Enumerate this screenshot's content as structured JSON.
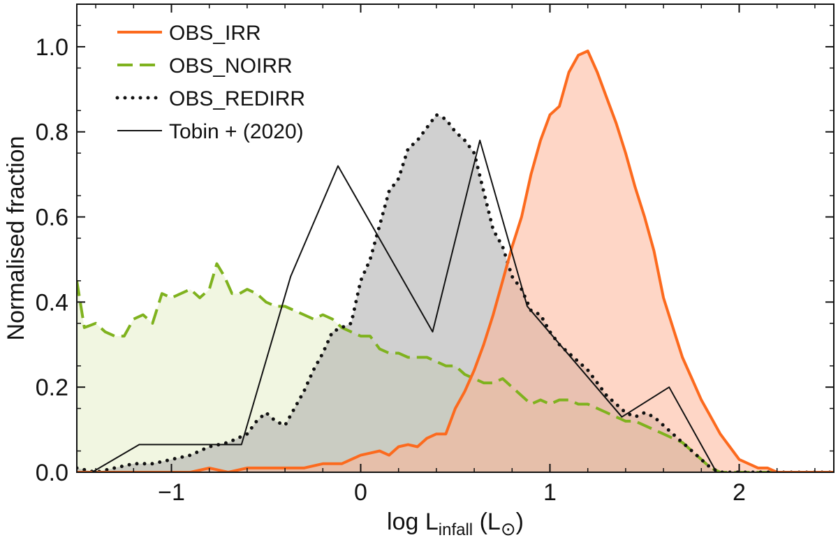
{
  "chart_data": {
    "type": "area",
    "xlabel": {
      "prefix": "log L",
      "subscript": "infall",
      "suffix": " (L",
      "sun": "⊙",
      "close": ")"
    },
    "ylabel": "Normalised fraction",
    "xlim": [
      -1.5,
      2.5
    ],
    "ylim": [
      0.0,
      1.1
    ],
    "xticks": [
      -1,
      0,
      1,
      2
    ],
    "xtick_labels": [
      "−1",
      "0",
      "1",
      "2"
    ],
    "yticks": [
      0.0,
      0.2,
      0.4,
      0.6,
      0.8,
      1.0
    ],
    "ytick_labels": [
      "0.0",
      "0.2",
      "0.4",
      "0.6",
      "0.8",
      "1.0"
    ],
    "legend_position": "top-left",
    "series": [
      {
        "name": "OBS_NOIRR",
        "style": "dashed",
        "color": "#7fb21e",
        "fill": "#e6efc8",
        "x": [
          -1.5,
          -1.46,
          -1.4,
          -1.35,
          -1.3,
          -1.25,
          -1.2,
          -1.15,
          -1.1,
          -1.05,
          -1.0,
          -0.95,
          -0.9,
          -0.85,
          -0.8,
          -0.76,
          -0.72,
          -0.68,
          -0.64,
          -0.6,
          -0.55,
          -0.5,
          -0.45,
          -0.4,
          -0.35,
          -0.3,
          -0.25,
          -0.2,
          -0.15,
          -0.1,
          -0.05,
          0.0,
          0.05,
          0.1,
          0.15,
          0.2,
          0.25,
          0.3,
          0.35,
          0.4,
          0.45,
          0.5,
          0.55,
          0.6,
          0.65,
          0.7,
          0.75,
          0.8,
          0.85,
          0.9,
          0.95,
          1.0,
          1.05,
          1.1,
          1.15,
          1.2,
          1.25,
          1.3,
          1.35,
          1.4,
          1.45,
          1.5,
          1.55,
          1.6,
          1.65,
          1.7,
          1.75,
          1.8,
          1.85,
          1.9,
          2.0,
          2.5
        ],
        "values": [
          0.45,
          0.34,
          0.35,
          0.33,
          0.32,
          0.32,
          0.36,
          0.37,
          0.35,
          0.42,
          0.41,
          0.42,
          0.43,
          0.41,
          0.43,
          0.49,
          0.46,
          0.42,
          0.42,
          0.43,
          0.42,
          0.4,
          0.39,
          0.39,
          0.38,
          0.37,
          0.36,
          0.37,
          0.36,
          0.34,
          0.33,
          0.32,
          0.32,
          0.29,
          0.28,
          0.28,
          0.27,
          0.27,
          0.27,
          0.26,
          0.25,
          0.25,
          0.23,
          0.22,
          0.21,
          0.21,
          0.22,
          0.2,
          0.18,
          0.16,
          0.17,
          0.16,
          0.17,
          0.17,
          0.16,
          0.16,
          0.15,
          0.14,
          0.13,
          0.12,
          0.12,
          0.11,
          0.1,
          0.09,
          0.08,
          0.07,
          0.05,
          0.03,
          0.01,
          0.0,
          0.0,
          0.0
        ]
      },
      {
        "name": "OBS_REDIRR",
        "style": "dotted",
        "color": "#111111",
        "fill": "#aaaaaa",
        "x": [
          -1.5,
          -1.4,
          -1.3,
          -1.2,
          -1.1,
          -1.0,
          -0.9,
          -0.8,
          -0.7,
          -0.6,
          -0.55,
          -0.5,
          -0.45,
          -0.4,
          -0.35,
          -0.3,
          -0.25,
          -0.2,
          -0.15,
          -0.1,
          -0.05,
          0.0,
          0.05,
          0.1,
          0.15,
          0.2,
          0.25,
          0.3,
          0.35,
          0.4,
          0.45,
          0.5,
          0.55,
          0.6,
          0.65,
          0.7,
          0.75,
          0.8,
          0.85,
          0.9,
          0.95,
          1.0,
          1.05,
          1.1,
          1.15,
          1.2,
          1.25,
          1.3,
          1.35,
          1.4,
          1.45,
          1.5,
          1.55,
          1.6,
          1.65,
          1.7,
          1.75,
          1.8,
          1.85,
          1.9,
          2.0,
          2.5
        ],
        "values": [
          0.01,
          0.0,
          0.01,
          0.02,
          0.02,
          0.03,
          0.04,
          0.06,
          0.07,
          0.09,
          0.12,
          0.14,
          0.12,
          0.11,
          0.15,
          0.19,
          0.24,
          0.28,
          0.33,
          0.34,
          0.35,
          0.45,
          0.5,
          0.58,
          0.66,
          0.69,
          0.76,
          0.78,
          0.81,
          0.84,
          0.83,
          0.8,
          0.78,
          0.75,
          0.66,
          0.57,
          0.53,
          0.46,
          0.43,
          0.38,
          0.37,
          0.33,
          0.3,
          0.28,
          0.26,
          0.24,
          0.21,
          0.18,
          0.16,
          0.14,
          0.13,
          0.14,
          0.13,
          0.11,
          0.09,
          0.07,
          0.05,
          0.03,
          0.01,
          0.0,
          0.0,
          0.0
        ]
      },
      {
        "name": "OBS_IRR",
        "style": "solid",
        "color": "#fc6a1e",
        "fill": "#fdb598",
        "x": [
          -1.5,
          -1.3,
          -1.1,
          -0.9,
          -0.8,
          -0.7,
          -0.6,
          -0.5,
          -0.4,
          -0.3,
          -0.2,
          -0.1,
          0.0,
          0.05,
          0.1,
          0.15,
          0.2,
          0.25,
          0.3,
          0.35,
          0.4,
          0.45,
          0.5,
          0.55,
          0.6,
          0.65,
          0.7,
          0.75,
          0.8,
          0.85,
          0.9,
          0.95,
          1.0,
          1.05,
          1.1,
          1.15,
          1.2,
          1.25,
          1.3,
          1.35,
          1.4,
          1.45,
          1.5,
          1.55,
          1.6,
          1.65,
          1.7,
          1.75,
          1.8,
          1.85,
          1.9,
          1.95,
          2.0,
          2.05,
          2.1,
          2.15,
          2.2,
          2.25,
          2.3,
          2.35,
          2.4,
          2.45,
          2.5
        ],
        "values": [
          0.0,
          0.0,
          0.0,
          0.0,
          0.01,
          0.0,
          0.01,
          0.01,
          0.01,
          0.01,
          0.02,
          0.02,
          0.04,
          0.045,
          0.05,
          0.04,
          0.06,
          0.065,
          0.06,
          0.08,
          0.09,
          0.09,
          0.15,
          0.19,
          0.24,
          0.3,
          0.37,
          0.45,
          0.53,
          0.6,
          0.7,
          0.78,
          0.84,
          0.86,
          0.94,
          0.98,
          0.99,
          0.94,
          0.88,
          0.82,
          0.75,
          0.67,
          0.6,
          0.52,
          0.41,
          0.34,
          0.27,
          0.22,
          0.17,
          0.13,
          0.09,
          0.06,
          0.03,
          0.02,
          0.01,
          0.01,
          0.0,
          0.0,
          0.0,
          0.0,
          0.0,
          0.0,
          0.0
        ]
      },
      {
        "name": "Tobin + (2020)",
        "style": "solid-thin",
        "color": "#111111",
        "fill": "none",
        "x": [
          -1.42,
          -1.17,
          -0.63,
          -0.37,
          -0.12,
          0.38,
          0.63,
          0.88,
          1.38,
          1.63,
          1.88
        ],
        "values": [
          0.0,
          0.065,
          0.065,
          0.46,
          0.72,
          0.33,
          0.78,
          0.39,
          0.13,
          0.2,
          0.0
        ]
      }
    ]
  }
}
